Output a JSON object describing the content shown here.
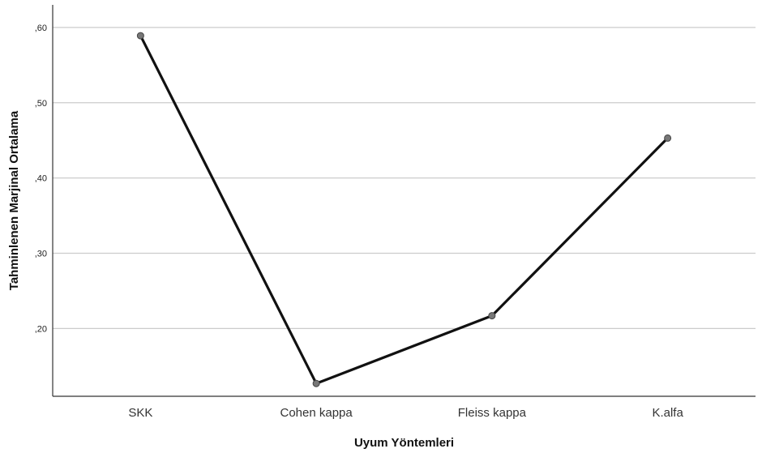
{
  "chart_data": {
    "type": "line",
    "title": "",
    "xlabel": "Uyum Yöntemleri",
    "ylabel": "Tahminlenen Marjinal Ortalama",
    "categories": [
      "SKK",
      "Cohen kappa",
      "Fleiss kappa",
      "K.alfa"
    ],
    "values": [
      0.589,
      0.127,
      0.217,
      0.453
    ],
    "ylim": [
      0.11,
      0.63
    ],
    "yticks": [
      0.2,
      0.3,
      0.4,
      0.5,
      0.6
    ],
    "ytick_labels": [
      ",20",
      ",30",
      ",40",
      ",50",
      ",60"
    ],
    "grid": "horizontal",
    "colors": {
      "line": "#111111",
      "marker": "#777777",
      "grid": "#cccccc",
      "axis": "#333333"
    }
  }
}
